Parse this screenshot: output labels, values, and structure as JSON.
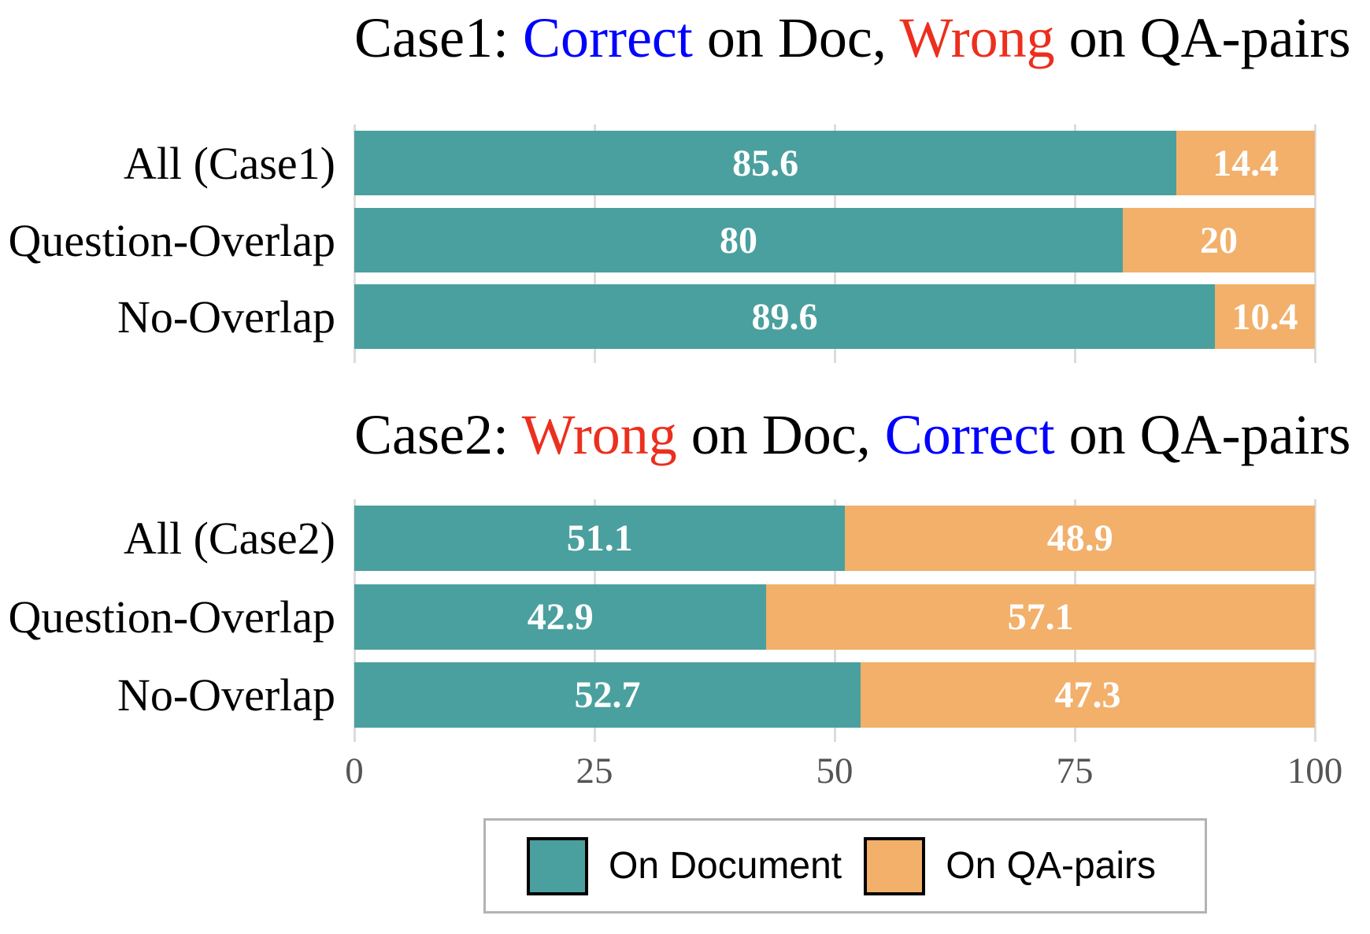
{
  "colors": {
    "teal": "#4AA09E",
    "orange": "#F2B06B",
    "title_black": "#000000",
    "title_blue": "#0000FF",
    "title_red": "#EC2F1E",
    "gridline": "#DCDCDC",
    "tick_text": "#555555",
    "value_text": "#FFFFFF",
    "legend_border": "#B3B3B3"
  },
  "chart_data": [
    {
      "type": "bar",
      "orientation": "horizontal",
      "stacked": true,
      "title": "Case1: Correct on Doc, Wrong on QA-pairs",
      "title_segments": [
        {
          "text": "Case1: ",
          "color_key": "title_black"
        },
        {
          "text": "Correct",
          "color_key": "title_blue"
        },
        {
          "text": " on Doc, ",
          "color_key": "title_black"
        },
        {
          "text": "Wrong",
          "color_key": "title_red"
        },
        {
          "text": " on QA-pairs",
          "color_key": "title_black"
        }
      ],
      "categories": [
        "All (Case1)",
        "Question-Overlap",
        "No-Overlap"
      ],
      "series": [
        {
          "name": "On Document",
          "color_key": "teal",
          "values": [
            85.6,
            80,
            89.6
          ]
        },
        {
          "name": "On QA-pairs",
          "color_key": "orange",
          "values": [
            14.4,
            20,
            10.4
          ]
        }
      ],
      "value_labels": [
        [
          "85.6",
          "14.4"
        ],
        [
          "80",
          "20"
        ],
        [
          "89.6",
          "10.4"
        ]
      ],
      "xlim": [
        0,
        100
      ],
      "xticks": [
        0,
        25,
        50,
        75,
        100
      ],
      "show_xtick_labels": false,
      "grid": true,
      "legend_position": "none"
    },
    {
      "type": "bar",
      "orientation": "horizontal",
      "stacked": true,
      "title": "Case2: Wrong on Doc, Correct on QA-pairs",
      "title_segments": [
        {
          "text": "Case2: ",
          "color_key": "title_black"
        },
        {
          "text": "Wrong",
          "color_key": "title_red"
        },
        {
          "text": " on Doc, ",
          "color_key": "title_black"
        },
        {
          "text": "Correct",
          "color_key": "title_blue"
        },
        {
          "text": " on QA-pairs",
          "color_key": "title_black"
        }
      ],
      "categories": [
        "All (Case2)",
        "Question-Overlap",
        "No-Overlap"
      ],
      "series": [
        {
          "name": "On Document",
          "color_key": "teal",
          "values": [
            51.1,
            42.9,
            52.7
          ]
        },
        {
          "name": "On QA-pairs",
          "color_key": "orange",
          "values": [
            48.9,
            57.1,
            47.3
          ]
        }
      ],
      "value_labels": [
        [
          "51.1",
          "48.9"
        ],
        [
          "42.9",
          "57.1"
        ],
        [
          "52.7",
          "47.3"
        ]
      ],
      "xlim": [
        0,
        100
      ],
      "xticks": [
        0,
        25,
        50,
        75,
        100
      ],
      "xtick_labels": [
        "0",
        "25",
        "50",
        "75",
        "100"
      ],
      "show_xtick_labels": true,
      "grid": true,
      "legend_position": "bottom"
    }
  ],
  "legend": {
    "entries": [
      {
        "label": "On Document",
        "color_key": "teal"
      },
      {
        "label": "On QA-pairs",
        "color_key": "orange"
      }
    ]
  }
}
